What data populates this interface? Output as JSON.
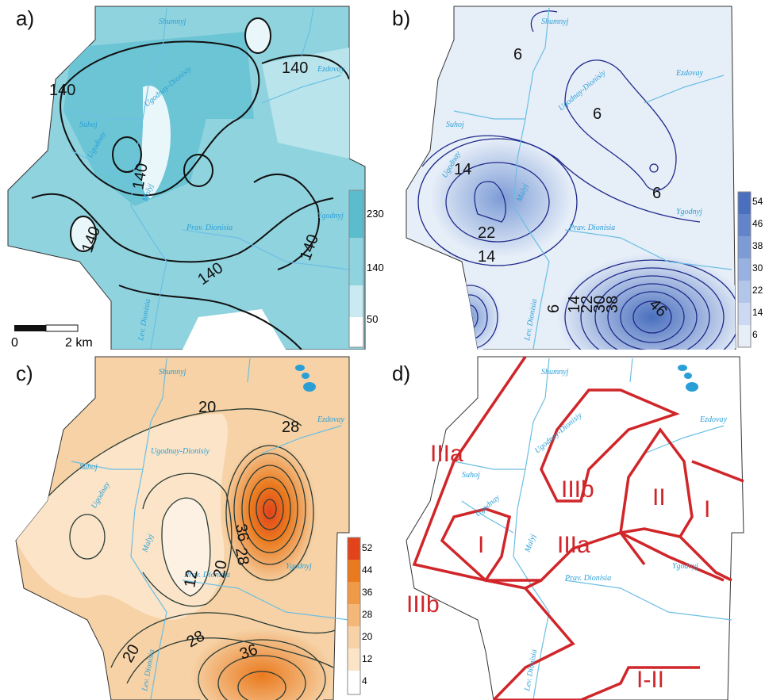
{
  "panels": {
    "a": {
      "label": "a)",
      "contour_labels": [
        "140",
        "140",
        "140",
        "140",
        "140",
        "140",
        "140",
        "140"
      ],
      "colorbar": [
        "230",
        "140",
        "50"
      ],
      "scalebar": {
        "start": "0",
        "end": "2 km"
      }
    },
    "b": {
      "label": "b)",
      "contour_labels": [
        "6",
        "6",
        "6",
        "14",
        "22",
        "14",
        "6",
        "14",
        "22",
        "30",
        "38",
        "46"
      ],
      "colorbar": [
        "54",
        "46",
        "38",
        "30",
        "22",
        "14",
        "6"
      ]
    },
    "c": {
      "label": "c)",
      "contour_labels": [
        "20",
        "28",
        "36",
        "28",
        "20",
        "12",
        "20",
        "28",
        "36"
      ],
      "colorbar": [
        "52",
        "44",
        "36",
        "28",
        "20",
        "12",
        "4"
      ]
    },
    "d": {
      "label": "d)",
      "zones": [
        "IIIa",
        "IIIb",
        "II",
        "I",
        "I",
        "IIIa",
        "IIIb",
        "I-II"
      ]
    }
  },
  "rivers": {
    "shumnyj": "Shumnyj",
    "ezdovay": "Ezdovay",
    "ugodnay_dionisiy": "Ugodnay-Dionisiy",
    "suhoj": "Suhoj",
    "ugodnay": "Ugodnay",
    "malyj": "Malyj",
    "ygodnyj": "Ygodnyj",
    "prav_dionisia": "Prav. Dionisia",
    "lev_dionisia": "Lev. Dionisia"
  },
  "colors": {
    "a_fill": "#8fd3df",
    "a_light": "#c8eaf0",
    "a_dark": "#5bbccd",
    "b_fill": "#e6eef8",
    "b_dark": "#4a6fbf",
    "b_line": "#1f2a8a",
    "c_fill": "#f6d2a6",
    "c_light": "#fdf1e3",
    "c_dark": "#ea7a1e",
    "zone_line": "#d0262a",
    "river": "#2a9fd6"
  }
}
